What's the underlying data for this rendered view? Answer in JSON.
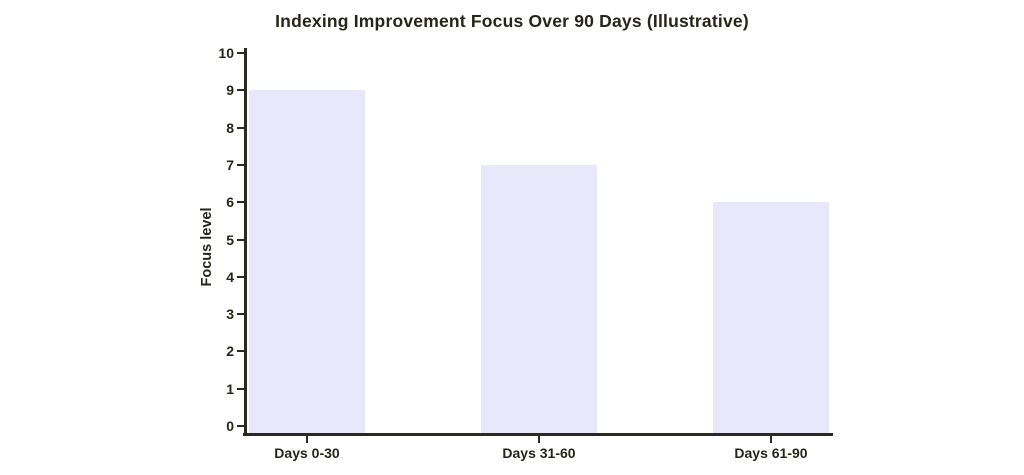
{
  "chart_data": {
    "type": "bar",
    "title": "Indexing Improvement Focus Over 90 Days (Illustrative)",
    "categories": [
      "Days 0-30",
      "Days 31-60",
      "Days 61-90"
    ],
    "values": [
      9,
      7,
      6
    ],
    "xlabel": "",
    "ylabel": "Focus level",
    "ylim": [
      0,
      10
    ],
    "yticks": [
      0,
      1,
      2,
      3,
      4,
      5,
      6,
      7,
      8,
      9,
      10
    ],
    "grid": false,
    "legend": null,
    "bar_color": "#e8e8fa",
    "axis_color": "#2b2a21",
    "text_color": "#26251b",
    "background_color": "#ffffff"
  }
}
